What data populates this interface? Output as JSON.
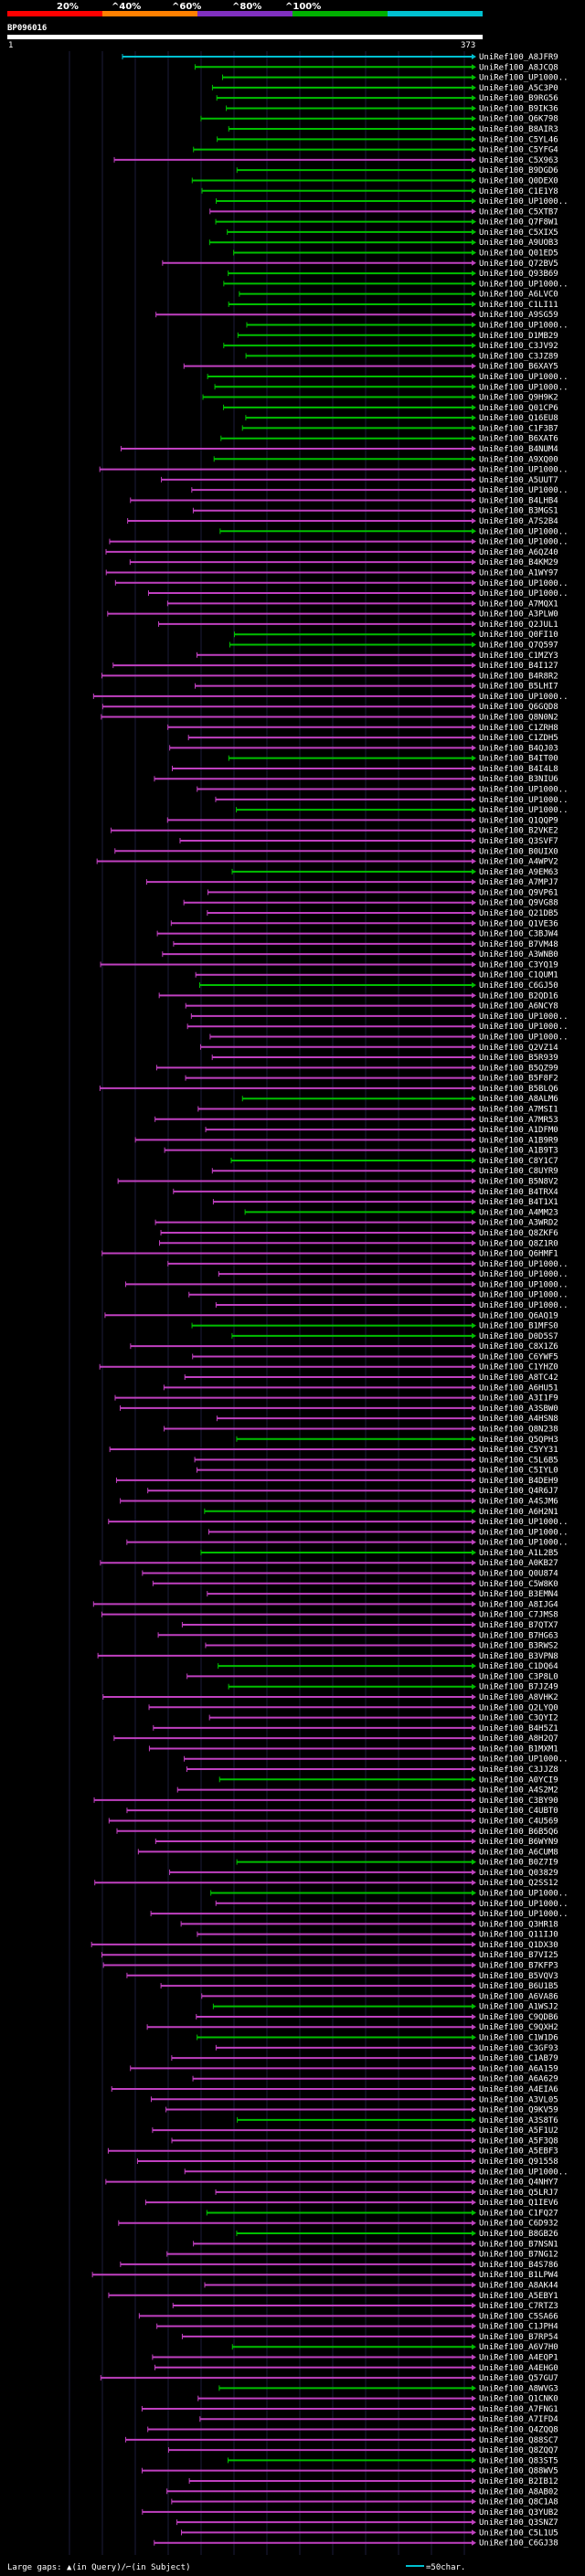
{
  "chart_data": {
    "type": "alignment-overview",
    "title": "BP096016",
    "query_start": "1",
    "query_end": "373",
    "scale": {
      "ticks": [
        "20%",
        "^40%",
        "^60%",
        "^80%",
        "^100%"
      ],
      "segments": [
        {
          "label": "0-20%",
          "color": "#ff0000"
        },
        {
          "label": "20-40%",
          "color": "#ff8000"
        },
        {
          "label": "40-60%",
          "color": "#8030c0"
        },
        {
          "label": "60-80%",
          "color": "#00b000"
        },
        {
          "label": "80-100%",
          "color": "#00c0d0"
        }
      ]
    },
    "legend": {
      "gaps_text": "Large gaps: ▲(in Query)/⌐(in Subject)",
      "item_label": "=50char."
    },
    "hit_labels": [
      "UniRef100_A8JFR9",
      "UniRef100_A8JCQ8",
      "UniRef100_UP1000..",
      "UniRef100_A5C3P0",
      "UniRef100_B9RG56",
      "UniRef100_B9IK36",
      "UniRef100_Q6K798",
      "UniRef100_B8AIR3",
      "UniRef100_C5YL46",
      "UniRef100_C5YFG4",
      "UniRef100_C5X963",
      "UniRef100_B9DGD6",
      "UniRef100_Q0DEX0",
      "UniRef100_C1E1Y8",
      "UniRef100_UP1000..",
      "UniRef100_C5XTB7",
      "UniRef100_Q7F8W1",
      "UniRef100_C5XIX5",
      "UniRef100_A9UOB3",
      "UniRef100_Q01ED5",
      "UniRef100_Q72BV5",
      "UniRef100_Q93B69",
      "UniRef100_UP1000..",
      "UniRef100_A6LVC0",
      "UniRef100_C1LI11",
      "UniRef100_A9SG59",
      "UniRef100_UP1000..",
      "UniRef100_D1MB29",
      "UniRef100_C3JV92",
      "UniRef100_C3JZ89",
      "UniRef100_B6XAY5",
      "UniRef100_UP1000..",
      "UniRef100_UP1000..",
      "UniRef100_Q9H9K2",
      "UniRef100_Q01CP6",
      "UniRef100_Q16EU8",
      "UniRef100_C1F3B7",
      "UniRef100_B6XAT6",
      "UniRef100_B4NUM4",
      "UniRef100_A9XQ00",
      "UniRef100_UP1000..",
      "UniRef100_A5UUT7",
      "UniRef100_UP1000..",
      "UniRef100_B4LHB4",
      "UniRef100_B3MGS1",
      "UniRef100_A7S2B4",
      "UniRef100_UP1000..",
      "UniRef100_UP1000..",
      "UniRef100_A6QZ40",
      "UniRef100_B4KM29",
      "UniRef100_A1WY97",
      "UniRef100_UP1000..",
      "UniRef100_UP1000..",
      "UniRef100_A7MQX1",
      "UniRef100_A3PLW0",
      "UniRef100_Q2JUL1",
      "UniRef100_Q0FI10",
      "UniRef100_Q7Q597",
      "UniRef100_C1MZY3",
      "UniRef100_B4I127",
      "UniRef100_B4R8R2",
      "UniRef100_B5LHI7",
      "UniRef100_UP1000..",
      "UniRef100_Q6GQD8",
      "UniRef100_Q8N0N2",
      "UniRef100_C1ZRH8",
      "UniRef100_C1ZDH5",
      "UniRef100_B4QJ03",
      "UniRef100_B4IT00",
      "UniRef100_B4I4L8",
      "UniRef100_B3NIU6",
      "UniRef100_UP1000..",
      "UniRef100_UP1000..",
      "UniRef100_UP1000..",
      "UniRef100_Q1QQP9",
      "UniRef100_B2VKE2",
      "UniRef100_Q3SVF7",
      "UniRef100_B0UIX0",
      "UniRef100_A4WPV2",
      "UniRef100_A9EM63",
      "UniRef100_A7MPJ7",
      "UniRef100_Q9VP61",
      "UniRef100_Q9VG88",
      "UniRef100_Q21DB5",
      "UniRef100_Q1VE36",
      "UniRef100_C3BJW4",
      "UniRef100_B7VM48",
      "UniRef100_A3WNB0",
      "UniRef100_C3YQ19",
      "UniRef100_C1QUM1",
      "UniRef100_C6GJ50",
      "UniRef100_B2QD16",
      "UniRef100_A6NCY8",
      "UniRef100_UP1000..",
      "UniRef100_UP1000..",
      "UniRef100_UP1000..",
      "UniRef100_Q2VZ14",
      "UniRef100_B5R939",
      "UniRef100_B5QZ99",
      "UniRef100_B5F8F2",
      "UniRef100_B5BLQ6",
      "UniRef100_A8ALM6",
      "UniRef100_A7MSI1",
      "UniRef100_A7MR53",
      "UniRef100_A1DFM0",
      "UniRef100_A1B9R9",
      "UniRef100_A1B9T3",
      "UniRef100_C8Y1C7",
      "UniRef100_C8UYR9",
      "UniRef100_B5N8V2",
      "UniRef100_B4TRX4",
      "UniRef100_B4T1X1",
      "UniRef100_A4MM23",
      "UniRef100_A3WRD2",
      "UniRef100_Q8ZKF6",
      "UniRef100_Q8Z1R0",
      "UniRef100_Q6HMF1",
      "UniRef100_UP1000..",
      "UniRef100_UP1000..",
      "UniRef100_UP1000..",
      "UniRef100_UP1000..",
      "UniRef100_UP1000..",
      "UniRef100_Q6AQ19",
      "UniRef100_B1MFS0",
      "UniRef100_D0D5S7",
      "UniRef100_C8X1Z6",
      "UniRef100_C6YWF5",
      "UniRef100_C1YHZ0",
      "UniRef100_A8TC42",
      "UniRef100_A6HU51",
      "UniRef100_A3I1F9",
      "UniRef100_A3SBW0",
      "UniRef100_A4HSN8",
      "UniRef100_Q8N238",
      "UniRef100_Q5QPH3",
      "UniRef100_C5YY31",
      "UniRef100_C5L6B5",
      "UniRef100_C5IYL0",
      "UniRef100_B4DEH9",
      "UniRef100_Q4R6J7",
      "UniRef100_A4SJM6",
      "UniRef100_A6H2N1",
      "UniRef100_UP1000..",
      "UniRef100_UP1000..",
      "UniRef100_UP1000..",
      "UniRef100_A1L2B5",
      "UniRef100_A0KB27",
      "UniRef100_Q0U874",
      "UniRef100_C5W8K0",
      "UniRef100_B3EMN4",
      "UniRef100_A8IJG4",
      "UniRef100_C7JMS8",
      "UniRef100_B7QTX7",
      "UniRef100_B7HG63",
      "UniRef100_B3RWS2",
      "UniRef100_B3VPN8",
      "UniRef100_C1DQ64",
      "UniRef100_C3P8L0",
      "UniRef100_B7JZ49",
      "UniRef100_A8VHK2",
      "UniRef100_Q2LYQ0",
      "UniRef100_C3QYI2",
      "UniRef100_B4H5Z1",
      "UniRef100_A8H2Q7",
      "UniRef100_B1MXM1",
      "UniRef100_UP1000..",
      "UniRef100_C3JJZ8",
      "UniRef100_A0YCI9",
      "UniRef100_A4S2M2",
      "UniRef100_C3BY90",
      "UniRef100_C4UBT0",
      "UniRef100_C4U569",
      "UniRef100_B6B5Q6",
      "UniRef100_B6WYN9",
      "UniRef100_A6CUM8",
      "UniRef100_B0Z7I9",
      "UniRef100_Q03829",
      "UniRef100_Q2SS12",
      "UniRef100_UP1000..",
      "UniRef100_UP1000..",
      "UniRef100_UP1000..",
      "UniRef100_Q3HR18",
      "UniRef100_Q11IJ0",
      "UniRef100_Q1DX30",
      "UniRef100_B7VI25",
      "UniRef100_B7KFP3",
      "UniRef100_B5VQV3",
      "UniRef100_B6U1B5",
      "UniRef100_A6VA86",
      "UniRef100_A1WSJ2",
      "UniRef100_C9QDB6",
      "UniRef100_C9QXH2",
      "UniRef100_C1W1D6",
      "UniRef100_C3GF93",
      "UniRef100_C1AB79",
      "UniRef100_A6A159",
      "UniRef100_A6A629",
      "UniRef100_A4EIA6",
      "UniRef100_A3VL05",
      "UniRef100_Q9KV59",
      "UniRef100_A3S8T6",
      "UniRef100_A5F1U2",
      "UniRef100_A5F3Q8",
      "UniRef100_A5EBF3",
      "UniRef100_Q91558",
      "UniRef100_UP1000..",
      "UniRef100_Q4NHY7",
      "UniRef100_Q5LRJ7",
      "UniRef100_Q1IEV6",
      "UniRef100_C1FQ27",
      "UniRef100_C6D932",
      "UniRef100_B8GB26",
      "UniRef100_B7NSN1",
      "UniRef100_B7NG12",
      "UniRef100_B4S786",
      "UniRef100_B1LPW4",
      "UniRef100_A8AK44",
      "UniRef100_A5EBY1",
      "UniRef100_C7RTZ3",
      "UniRef100_C5SA66",
      "UniRef100_C1JPH4",
      "UniRef100_B7RP54",
      "UniRef100_A6V7H0",
      "UniRef100_A4EQP1",
      "UniRef100_A4EHG0",
      "UniRef100_Q57GU7",
      "UniRef100_A8WVG3",
      "UniRef100_Q1CNK0",
      "UniRef100_A7FNG1",
      "UniRef100_A7IFD4",
      "UniRef100_Q4ZQQ8",
      "UniRef100_Q88SC7",
      "UniRef100_Q8ZQQ7",
      "UniRef100_Q83ST5",
      "UniRef100_Q88WV5",
      "UniRef100_B2IB12",
      "UniRef100_A8AB02",
      "UniRef100_Q8C1A8",
      "UniRef100_Q3YUB2",
      "UniRef100_Q3SNZ7",
      "UniRef100_C5L1U5",
      "UniRef100_C6GJ38"
    ]
  }
}
